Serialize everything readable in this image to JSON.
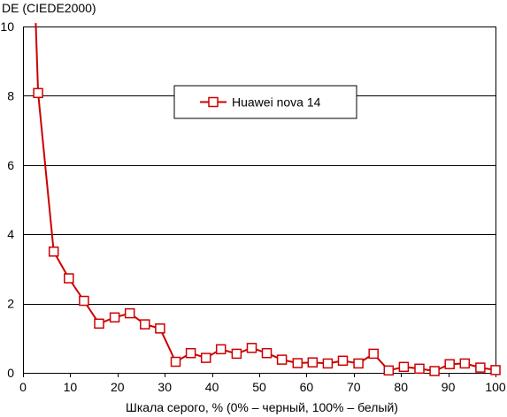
{
  "chart_data": {
    "type": "line",
    "ylabel": "DE (CIEDE2000)",
    "xlabel": "Шкала серого, % (0% – черный, 100% – белый)",
    "xlim": [
      0,
      100
    ],
    "ylim": [
      0,
      10
    ],
    "x_ticks": [
      "0",
      "10",
      "20",
      "30",
      "40",
      "50",
      "60",
      "70",
      "80",
      "90",
      "100"
    ],
    "y_ticks": [
      "0",
      "2",
      "4",
      "6",
      "8",
      "10"
    ],
    "grid": "horizontal",
    "legend_position": "upper-center",
    "series": [
      {
        "name": "Huawei nova 14",
        "color": "#cc0000",
        "x": [
          2.7,
          3.2,
          6.5,
          9.7,
          12.9,
          16.1,
          19.4,
          22.6,
          25.8,
          29.0,
          32.3,
          35.5,
          38.7,
          41.9,
          45.2,
          48.4,
          51.6,
          54.8,
          58.1,
          61.3,
          64.5,
          67.7,
          71.0,
          74.2,
          77.4,
          80.6,
          83.9,
          87.1,
          90.3,
          93.5,
          96.8,
          100
        ],
        "y": [
          10.2,
          8.08,
          3.5,
          2.73,
          2.08,
          1.42,
          1.6,
          1.72,
          1.4,
          1.28,
          0.32,
          0.57,
          0.43,
          0.68,
          0.55,
          0.72,
          0.57,
          0.38,
          0.28,
          0.3,
          0.27,
          0.35,
          0.27,
          0.55,
          0.07,
          0.17,
          0.12,
          0.05,
          0.25,
          0.27,
          0.15,
          0.08
        ],
        "markers": [
          false,
          true,
          true,
          true,
          true,
          true,
          true,
          true,
          true,
          true,
          true,
          true,
          true,
          true,
          true,
          true,
          true,
          true,
          true,
          true,
          true,
          true,
          true,
          true,
          true,
          true,
          true,
          true,
          true,
          true,
          true,
          true
        ]
      }
    ]
  }
}
